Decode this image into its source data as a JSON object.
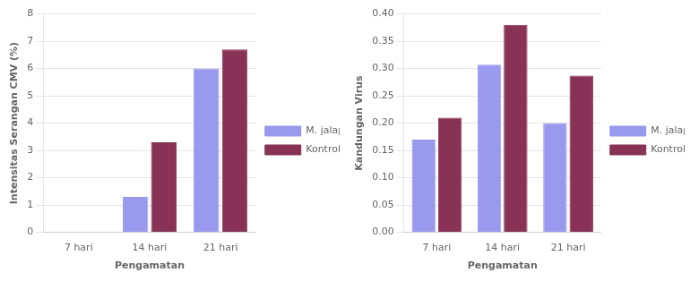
{
  "chart_data": [
    {
      "type": "bar",
      "categories": [
        "7 hari",
        "14 hari",
        "21 hari"
      ],
      "series": [
        {
          "name": "M. jalapa",
          "color": "#9999ee",
          "values": [
            0,
            1.3,
            6.0
          ]
        },
        {
          "name": "Kontrol +",
          "color": "#883355",
          "values": [
            0,
            3.3,
            6.7
          ]
        }
      ],
      "xlabel": "Pengamatan",
      "ylabel": "Intensitas Serangan CMV (%)",
      "ylim": [
        0,
        8
      ],
      "yticks": [
        0,
        1,
        2,
        3,
        4,
        5,
        6,
        7,
        8
      ],
      "grid": true,
      "legend": "right"
    },
    {
      "type": "bar",
      "categories": [
        "7 hari",
        "14 hari",
        "21 hari"
      ],
      "series": [
        {
          "name": "M. jalapa",
          "color": "#9999ee",
          "values": [
            0.17,
            0.307,
            0.2
          ]
        },
        {
          "name": "Kontrol +",
          "color": "#883355",
          "values": [
            0.21,
            0.38,
            0.287
          ]
        }
      ],
      "xlabel": "Pengamatan",
      "ylabel": "Kandungan Virus",
      "ylim": [
        0,
        0.4
      ],
      "yticks": [
        {
          "value": 0,
          "label": "0.00"
        },
        0.05,
        {
          "value": 0.1,
          "label": "0.10"
        },
        0.15,
        {
          "value": 0.2,
          "label": "0.20"
        },
        0.25,
        {
          "value": 0.3,
          "label": "0.30"
        },
        0.35,
        {
          "value": 0.4,
          "label": "0.40"
        }
      ],
      "grid": true,
      "legend": "right"
    }
  ]
}
